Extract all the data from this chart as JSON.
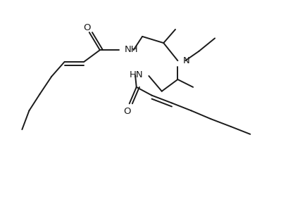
{
  "bg_color": "#ffffff",
  "line_color": "#1a1a1a",
  "lw": 1.4,
  "fs": 9.5,
  "figsize": [
    4.26,
    2.93
  ],
  "dpi": 100,
  "xlim": [
    -0.5,
    4.2
  ],
  "ylim": [
    -0.3,
    3.2
  ]
}
